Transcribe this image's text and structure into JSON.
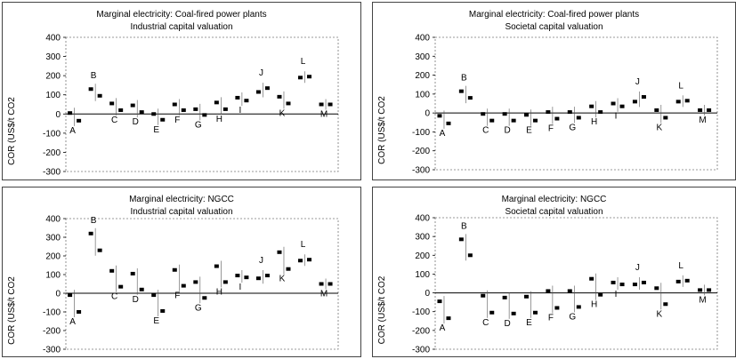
{
  "chart_data": [
    {
      "type": "scatter",
      "title": "Marginal electricity: Coal-fired power plants",
      "subtitle": "Industrial capital valuation",
      "ylabel": "COR (US$/t CO2",
      "ylim": [
        -300,
        400
      ],
      "yticks": [
        -300,
        -200,
        -100,
        0,
        100,
        200,
        300,
        400
      ],
      "categories": [
        "A",
        "B",
        "C",
        "D",
        "E",
        "F",
        "G",
        "H",
        "I",
        "J",
        "K",
        "L",
        "M"
      ],
      "points": [
        {
          "cat": "A",
          "values": [
            5,
            -35
          ]
        },
        {
          "cat": "B",
          "values": [
            130,
            95
          ]
        },
        {
          "cat": "C",
          "values": [
            55,
            20
          ]
        },
        {
          "cat": "D",
          "values": [
            45,
            10
          ]
        },
        {
          "cat": "E",
          "values": [
            0,
            -30
          ]
        },
        {
          "cat": "F",
          "values": [
            50,
            20
          ]
        },
        {
          "cat": "G",
          "values": [
            25,
            -5
          ]
        },
        {
          "cat": "H",
          "values": [
            60,
            25
          ]
        },
        {
          "cat": "I",
          "values": [
            85,
            70
          ]
        },
        {
          "cat": "J",
          "values": [
            115,
            135
          ]
        },
        {
          "cat": "K",
          "values": [
            90,
            55
          ]
        },
        {
          "cat": "L",
          "values": [
            190,
            195
          ]
        },
        {
          "cat": "M",
          "values": [
            50,
            50
          ]
        }
      ]
    },
    {
      "type": "scatter",
      "title": "Marginal electricity: Coal-fired power plants",
      "subtitle": "Societal capital valuation",
      "ylabel": "COR (US$/t CO2",
      "ylim": [
        -300,
        400
      ],
      "yticks": [
        -300,
        -200,
        -100,
        0,
        100,
        200,
        300,
        400
      ],
      "categories": [
        "A",
        "B",
        "C",
        "D",
        "E",
        "F",
        "G",
        "H",
        "I",
        "J",
        "K",
        "L",
        "M"
      ],
      "points": [
        {
          "cat": "A",
          "values": [
            -15,
            -55
          ]
        },
        {
          "cat": "B",
          "values": [
            115,
            80
          ]
        },
        {
          "cat": "C",
          "values": [
            -5,
            -40
          ]
        },
        {
          "cat": "D",
          "values": [
            -5,
            -40
          ]
        },
        {
          "cat": "E",
          "values": [
            -10,
            -40
          ]
        },
        {
          "cat": "F",
          "values": [
            5,
            -30
          ]
        },
        {
          "cat": "G",
          "values": [
            5,
            -25
          ]
        },
        {
          "cat": "H",
          "values": [
            35,
            5
          ]
        },
        {
          "cat": "I",
          "values": [
            50,
            35
          ]
        },
        {
          "cat": "J",
          "values": [
            60,
            85
          ]
        },
        {
          "cat": "K",
          "values": [
            15,
            -25
          ]
        },
        {
          "cat": "L",
          "values": [
            60,
            65
          ]
        },
        {
          "cat": "M",
          "values": [
            15,
            15
          ]
        }
      ]
    },
    {
      "type": "scatter",
      "title": "Marginal electricity: NGCC",
      "subtitle": "Industrial capital valuation",
      "ylabel": "COR (US$/t CO2",
      "ylim": [
        -300,
        400
      ],
      "yticks": [
        -300,
        -200,
        -100,
        0,
        100,
        200,
        300,
        400
      ],
      "categories": [
        "A",
        "B",
        "C",
        "D",
        "E",
        "F",
        "G",
        "H",
        "I",
        "J",
        "K",
        "L",
        "M"
      ],
      "points": [
        {
          "cat": "A",
          "values": [
            -10,
            -100
          ]
        },
        {
          "cat": "B",
          "values": [
            320,
            230
          ]
        },
        {
          "cat": "C",
          "values": [
            120,
            35
          ]
        },
        {
          "cat": "D",
          "values": [
            105,
            20
          ]
        },
        {
          "cat": "E",
          "values": [
            -10,
            -95
          ]
        },
        {
          "cat": "F",
          "values": [
            125,
            40
          ]
        },
        {
          "cat": "G",
          "values": [
            60,
            -25
          ]
        },
        {
          "cat": "H",
          "values": [
            145,
            60
          ]
        },
        {
          "cat": "I",
          "values": [
            95,
            85
          ]
        },
        {
          "cat": "J",
          "values": [
            80,
            95
          ]
        },
        {
          "cat": "K",
          "values": [
            220,
            130
          ]
        },
        {
          "cat": "L",
          "values": [
            175,
            180
          ]
        },
        {
          "cat": "M",
          "values": [
            50,
            50
          ]
        }
      ]
    },
    {
      "type": "scatter",
      "title": "Marginal electricity: NGCC",
      "subtitle": "Societal capital valuation",
      "ylabel": "COR (US$/t CO2",
      "ylim": [
        -300,
        400
      ],
      "yticks": [
        -300,
        -200,
        -100,
        0,
        100,
        200,
        300,
        400
      ],
      "categories": [
        "A",
        "B",
        "C",
        "D",
        "E",
        "F",
        "G",
        "H",
        "I",
        "J",
        "K",
        "L",
        "M"
      ],
      "points": [
        {
          "cat": "A",
          "values": [
            -45,
            -135
          ]
        },
        {
          "cat": "B",
          "values": [
            285,
            200
          ]
        },
        {
          "cat": "C",
          "values": [
            -15,
            -105
          ]
        },
        {
          "cat": "D",
          "values": [
            -25,
            -110
          ]
        },
        {
          "cat": "E",
          "values": [
            -20,
            -105
          ]
        },
        {
          "cat": "F",
          "values": [
            10,
            -80
          ]
        },
        {
          "cat": "G",
          "values": [
            10,
            -75
          ]
        },
        {
          "cat": "H",
          "values": [
            75,
            -10
          ]
        },
        {
          "cat": "I",
          "values": [
            55,
            45
          ]
        },
        {
          "cat": "J",
          "values": [
            45,
            55
          ]
        },
        {
          "cat": "K",
          "values": [
            25,
            -60
          ]
        },
        {
          "cat": "L",
          "values": [
            60,
            65
          ]
        },
        {
          "cat": "M",
          "values": [
            15,
            15
          ]
        }
      ]
    }
  ]
}
